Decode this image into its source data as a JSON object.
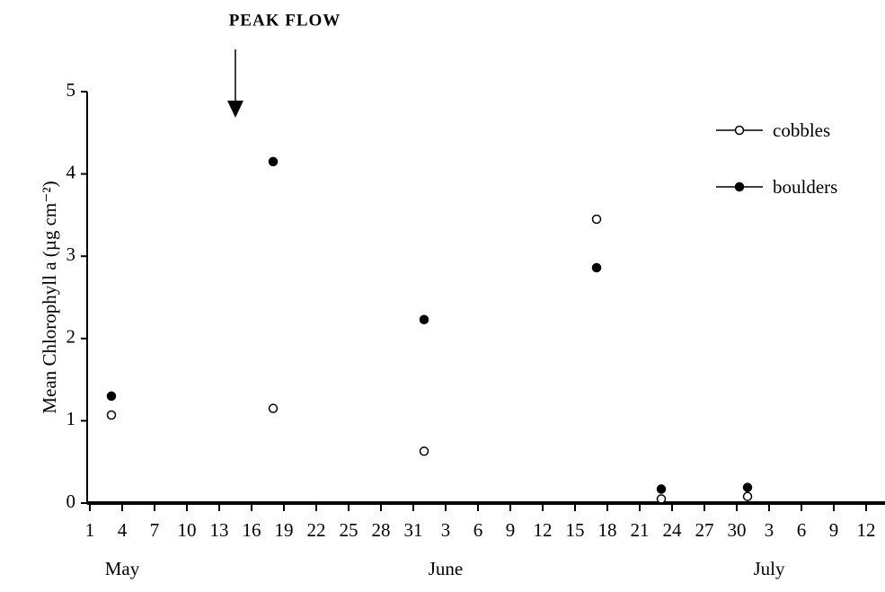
{
  "chart_data": {
    "type": "scatter",
    "y_label": "Mean Chlorophyll a  (µg cm⁻²)",
    "annotation": {
      "text": "PEAK FLOW",
      "x": 14.5
    },
    "series": [
      {
        "name": "cobbles",
        "color": "#000000",
        "filled": false,
        "x": [
          3,
          18,
          32,
          48,
          54,
          62
        ],
        "values": [
          1.07,
          1.15,
          0.63,
          3.45,
          0.05,
          0.08
        ]
      },
      {
        "name": "boulders",
        "color": "#000000",
        "filled": true,
        "x": [
          3,
          18,
          32,
          48,
          54,
          62
        ],
        "values": [
          1.3,
          4.15,
          2.23,
          2.86,
          0.17,
          0.19
        ]
      }
    ],
    "xlim": [
      1,
      74
    ],
    "xticks": [
      1,
      4,
      7,
      10,
      13,
      16,
      19,
      22,
      25,
      28,
      31,
      {
        "value": 34,
        "label": "3"
      },
      {
        "value": 37,
        "label": "6"
      },
      {
        "value": 40,
        "label": "9"
      },
      {
        "value": 43,
        "label": "12"
      },
      {
        "value": 46,
        "label": "15"
      },
      {
        "value": 49,
        "label": "18"
      },
      {
        "value": 52,
        "label": "21"
      },
      {
        "value": 55,
        "label": "24"
      },
      {
        "value": 58,
        "label": "27"
      },
      {
        "value": 61,
        "label": "30"
      },
      {
        "value": 64,
        "label": "3"
      },
      {
        "value": 67,
        "label": "6"
      },
      {
        "value": 70,
        "label": "9"
      },
      {
        "value": 73,
        "label": "12"
      }
    ],
    "xmonths": [
      {
        "value": 4,
        "label": "May"
      },
      {
        "value": 34,
        "label": "June"
      },
      {
        "value": 64,
        "label": "July"
      }
    ],
    "ylim": [
      0,
      5
    ],
    "yticks": [
      0,
      1,
      2,
      3,
      4,
      5
    ],
    "legend": "top-right"
  }
}
